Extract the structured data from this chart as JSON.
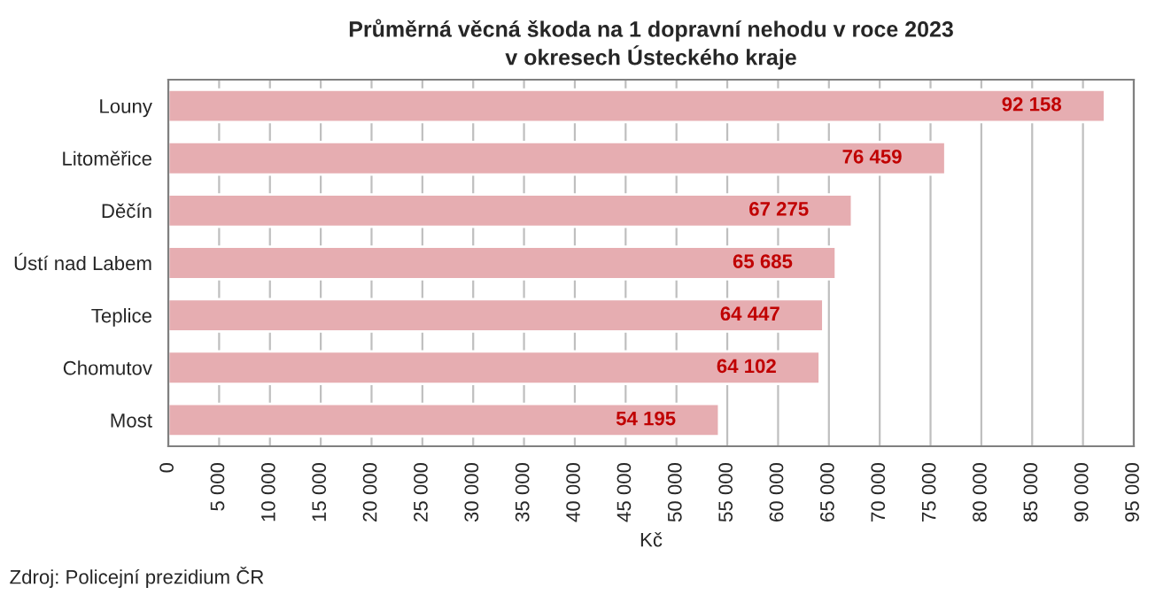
{
  "chart_data": {
    "type": "bar",
    "orientation": "horizontal",
    "title": "Průměrná věcná škoda na 1 dopravní nehodu v roce 2023\nv okresech Ústeckého kraje",
    "xlabel": "Kč",
    "categories": [
      "Louny",
      "Litoměřice",
      "Děčín",
      "Ústí nad Labem",
      "Teplice",
      "Chomutov",
      "Most"
    ],
    "values": [
      92158,
      76459,
      67275,
      65685,
      64447,
      64102,
      54195
    ],
    "value_labels": [
      "92 158",
      "76 459",
      "67 275",
      "65 685",
      "64 447",
      "64 102",
      "54 195"
    ],
    "color": "#e6adb1",
    "xlim": [
      0,
      95000
    ],
    "xticks": [
      0,
      {
        "value": 5000,
        "label": "5 000"
      },
      {
        "value": 10000,
        "label": "10 000"
      },
      {
        "value": 15000,
        "label": "15 000"
      },
      {
        "value": 20000,
        "label": "20 000"
      },
      {
        "value": 25000,
        "label": "25 000"
      },
      {
        "value": 30000,
        "label": "30 000"
      },
      {
        "value": 35000,
        "label": "35 000"
      },
      {
        "value": 40000,
        "label": "40 000"
      },
      {
        "value": 45000,
        "label": "45 000"
      },
      {
        "value": 50000,
        "label": "50 000"
      },
      {
        "value": 55000,
        "label": "55 000"
      },
      {
        "value": 60000,
        "label": "60 000"
      },
      {
        "value": 65000,
        "label": "65 000"
      },
      {
        "value": 70000,
        "label": "70 000"
      },
      {
        "value": 75000,
        "label": "75 000"
      },
      {
        "value": 80000,
        "label": "80 000"
      },
      {
        "value": 85000,
        "label": "85 000"
      },
      {
        "value": 90000,
        "label": "90 000"
      },
      {
        "value": 95000,
        "label": "95 000"
      }
    ],
    "grid": "x",
    "legend": false,
    "annotations": [
      "Zdroj: Policejní prezidium ČR"
    ]
  }
}
